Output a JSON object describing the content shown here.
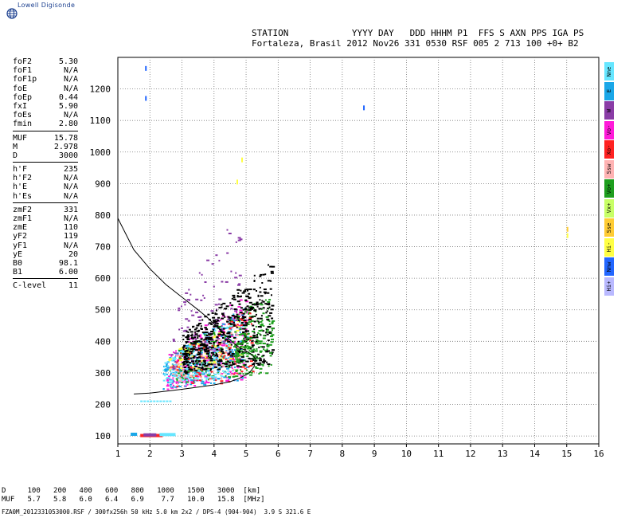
{
  "logo": {
    "text": "Lowell Digisonde",
    "icon": "globe-icon"
  },
  "header": {
    "labels": "STATION            YYYY DAY   DDD HHHM P1  FFS S AXN PPS IGA PS",
    "values": "Fortaleza, Brasil 2012 Nov26 331 0530 RSF 005 2 713 100 +0+ B2"
  },
  "params": [
    [
      {
        "k": "foF2",
        "v": "5.30"
      },
      {
        "k": "foF1",
        "v": "N/A"
      },
      {
        "k": "foF1p",
        "v": "N/A"
      },
      {
        "k": "foE",
        "v": "N/A"
      },
      {
        "k": "foEp",
        "v": "0.44"
      },
      {
        "k": "fxI",
        "v": "5.90"
      },
      {
        "k": "foEs",
        "v": "N/A"
      },
      {
        "k": "fmin",
        "v": "2.80"
      }
    ],
    [
      {
        "k": "MUF",
        "v": "15.78"
      },
      {
        "k": "M",
        "v": "2.978"
      },
      {
        "k": "D",
        "v": "3000"
      }
    ],
    [
      {
        "k": "h'F",
        "v": "235"
      },
      {
        "k": "h'F2",
        "v": "N/A"
      },
      {
        "k": "h'E",
        "v": "N/A"
      },
      {
        "k": "h'Es",
        "v": "N/A"
      }
    ],
    [
      {
        "k": "zmF2",
        "v": "331"
      },
      {
        "k": "zmF1",
        "v": "N/A"
      },
      {
        "k": "zmE",
        "v": "110"
      },
      {
        "k": "yF2",
        "v": "119"
      },
      {
        "k": "yF1",
        "v": "N/A"
      },
      {
        "k": "yE",
        "v": "20"
      },
      {
        "k": "B0",
        "v": "98.1"
      },
      {
        "k": "B1",
        "v": "6.00"
      }
    ],
    [
      {
        "k": "C-level",
        "v": "11"
      }
    ]
  ],
  "legend": [
    {
      "label": "Nne",
      "color": "#66e6ff"
    },
    {
      "label": "E",
      "color": "#1aa7e8"
    },
    {
      "label": "W",
      "color": "#8a3ca6"
    },
    {
      "label": "Vo-",
      "color": "#ff1ad9"
    },
    {
      "label": "Xo-",
      "color": "#ff2222"
    },
    {
      "label": "Ssw",
      "color": "#ffb3b3"
    },
    {
      "label": "Vo+",
      "color": "#1e9e1e"
    },
    {
      "label": "Vx+",
      "color": "#c8ff66"
    },
    {
      "label": "Sse",
      "color": "#ffcc33"
    },
    {
      "label": "Hi-",
      "color": "#ffff44"
    },
    {
      "label": "Nnw",
      "color": "#2266ff"
    },
    {
      "label": "Hi+",
      "color": "#b9b9ff"
    }
  ],
  "muf_table": {
    "d_label": "D",
    "d_values": [
      "100",
      "200",
      "400",
      "600",
      "800",
      "1000",
      "1500",
      "3000"
    ],
    "d_unit": "[km]",
    "muf_label": "MUF",
    "muf_values": [
      "5.7",
      "5.8",
      "6.0",
      "6.4",
      "6.9",
      "7.7",
      "10.0",
      "15.8"
    ],
    "muf_unit": "[MHz]"
  },
  "footer": "FZA0M_2012331053000.RSF / 300fx256h 50 kHz 5.0 km 2x2 / DPS-4 (904-904)  3.9 S 321.6 E",
  "chart_data": {
    "type": "scatter",
    "title": "",
    "xlabel": "",
    "ylabel": "",
    "xlim": [
      1,
      16
    ],
    "ylim": [
      75,
      1300
    ],
    "x_ticks": [
      1,
      2,
      3,
      4,
      5,
      6,
      7,
      8,
      9,
      10,
      11,
      12,
      13,
      14,
      15,
      16
    ],
    "y_ticks": [
      100,
      200,
      300,
      400,
      500,
      600,
      700,
      800,
      900,
      1000,
      1100,
      1200
    ],
    "grid": "dotted",
    "profile_curve": {
      "upper": [
        [
          1.0,
          790
        ],
        [
          1.5,
          690
        ],
        [
          2.0,
          630
        ],
        [
          2.5,
          580
        ],
        [
          3.0,
          540
        ],
        [
          3.5,
          500
        ],
        [
          3.8,
          475
        ],
        [
          4.0,
          455
        ],
        [
          4.2,
          435
        ],
        [
          4.4,
          415
        ],
        [
          4.6,
          395
        ],
        [
          4.8,
          380
        ],
        [
          5.0,
          370
        ],
        [
          5.15,
          360
        ],
        [
          5.3,
          345
        ]
      ],
      "lower": [
        [
          5.3,
          345
        ],
        [
          5.25,
          320
        ],
        [
          5.1,
          300
        ],
        [
          4.8,
          283
        ],
        [
          4.5,
          272
        ],
        [
          4.0,
          262
        ],
        [
          3.5,
          255
        ],
        [
          3.0,
          248
        ],
        [
          2.5,
          242
        ],
        [
          2.0,
          236
        ],
        [
          1.5,
          233
        ]
      ]
    },
    "echo_clusters": [
      {
        "series": "Vo-",
        "x": [
          2.5,
          5.0
        ],
        "y": [
          250,
          560
        ],
        "n": 260
      },
      {
        "series": "E",
        "x": [
          2.4,
          5.0
        ],
        "y": [
          250,
          520
        ],
        "n": 240
      },
      {
        "series": "Vo+",
        "x": [
          2.8,
          5.8
        ],
        "y": [
          270,
          560
        ],
        "n": 260
      },
      {
        "series": "Xo-",
        "x": [
          2.6,
          5.2
        ],
        "y": [
          250,
          520
        ],
        "n": 120
      },
      {
        "series": "Nne",
        "x": [
          2.4,
          4.5
        ],
        "y": [
          260,
          480
        ],
        "n": 150
      },
      {
        "series": "Hi-",
        "x": [
          2.5,
          5.0
        ],
        "y": [
          300,
          480
        ],
        "n": 60
      },
      {
        "series": "Ssw",
        "x": [
          2.6,
          4.8
        ],
        "y": [
          260,
          500
        ],
        "n": 60
      },
      {
        "series": "W",
        "x": [
          2.6,
          4.8
        ],
        "y": [
          300,
          820
        ],
        "n": 110
      },
      {
        "series": "Black",
        "x": [
          3.0,
          5.8
        ],
        "y": [
          300,
          660
        ],
        "n": 520
      },
      {
        "series": "Vo+",
        "x": [
          4.6,
          5.8
        ],
        "y": [
          330,
          500
        ],
        "n": 90
      }
    ],
    "sporadic_points": [
      {
        "series": "Nnw",
        "x": 1.85,
        "y": 1265
      },
      {
        "series": "Nnw",
        "x": 1.85,
        "y": 1170
      },
      {
        "series": "Nnw",
        "x": 8.65,
        "y": 1140
      },
      {
        "series": "Sse",
        "x": 15.0,
        "y": 755
      },
      {
        "series": "Hi-",
        "x": 15.0,
        "y": 735
      },
      {
        "series": "Hi-",
        "x": 4.85,
        "y": 975
      },
      {
        "series": "Hi-",
        "x": 4.7,
        "y": 905
      }
    ],
    "low_band": [
      {
        "series": "Xo-",
        "x": [
          1.7,
          2.4
        ],
        "y": 104
      },
      {
        "series": "W",
        "x": [
          1.8,
          2.2
        ],
        "y": 106
      },
      {
        "series": "Nne",
        "x": [
          2.3,
          2.8
        ],
        "y": 107
      },
      {
        "series": "E",
        "x": [
          1.4,
          1.6
        ],
        "y": 108
      }
    ],
    "e_layer_echoes": {
      "series": "Nne",
      "x": [
        1.7,
        2.7
      ],
      "y": 210
    }
  }
}
